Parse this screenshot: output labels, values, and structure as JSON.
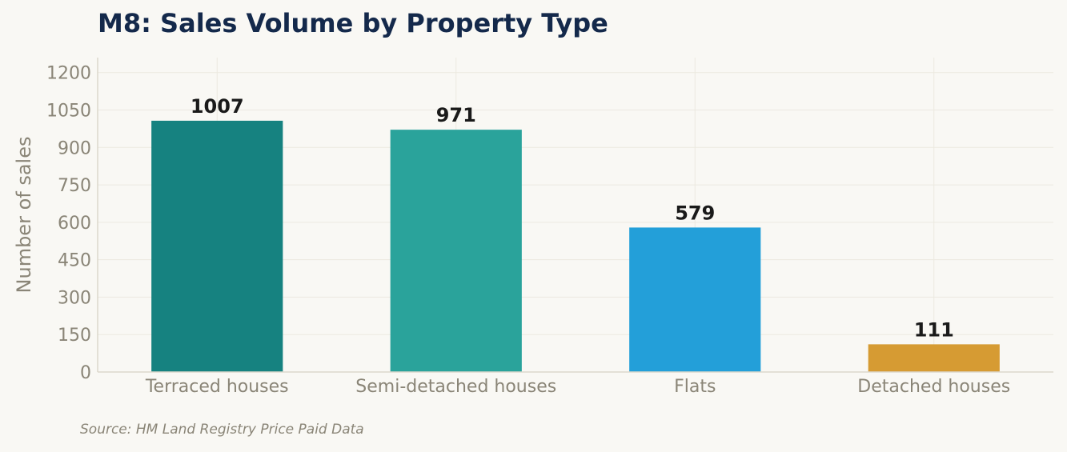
{
  "chart_data": {
    "type": "bar",
    "title": "M8: Sales Volume by Property Type",
    "xlabel": "",
    "ylabel": "Number of sales",
    "categories": [
      "Terraced houses",
      "Semi-detached houses",
      "Flats",
      "Detached houses"
    ],
    "values": [
      1007,
      971,
      579,
      111
    ],
    "colors": [
      "#168280",
      "#2aa39b",
      "#239fd9",
      "#d69b33"
    ],
    "ylim": [
      0,
      1260
    ],
    "yticks": [
      0,
      150,
      300,
      450,
      600,
      750,
      900,
      1050,
      1200
    ],
    "grid": true,
    "legend": "none"
  },
  "source": "Source: HM Land Registry Price Paid Data"
}
